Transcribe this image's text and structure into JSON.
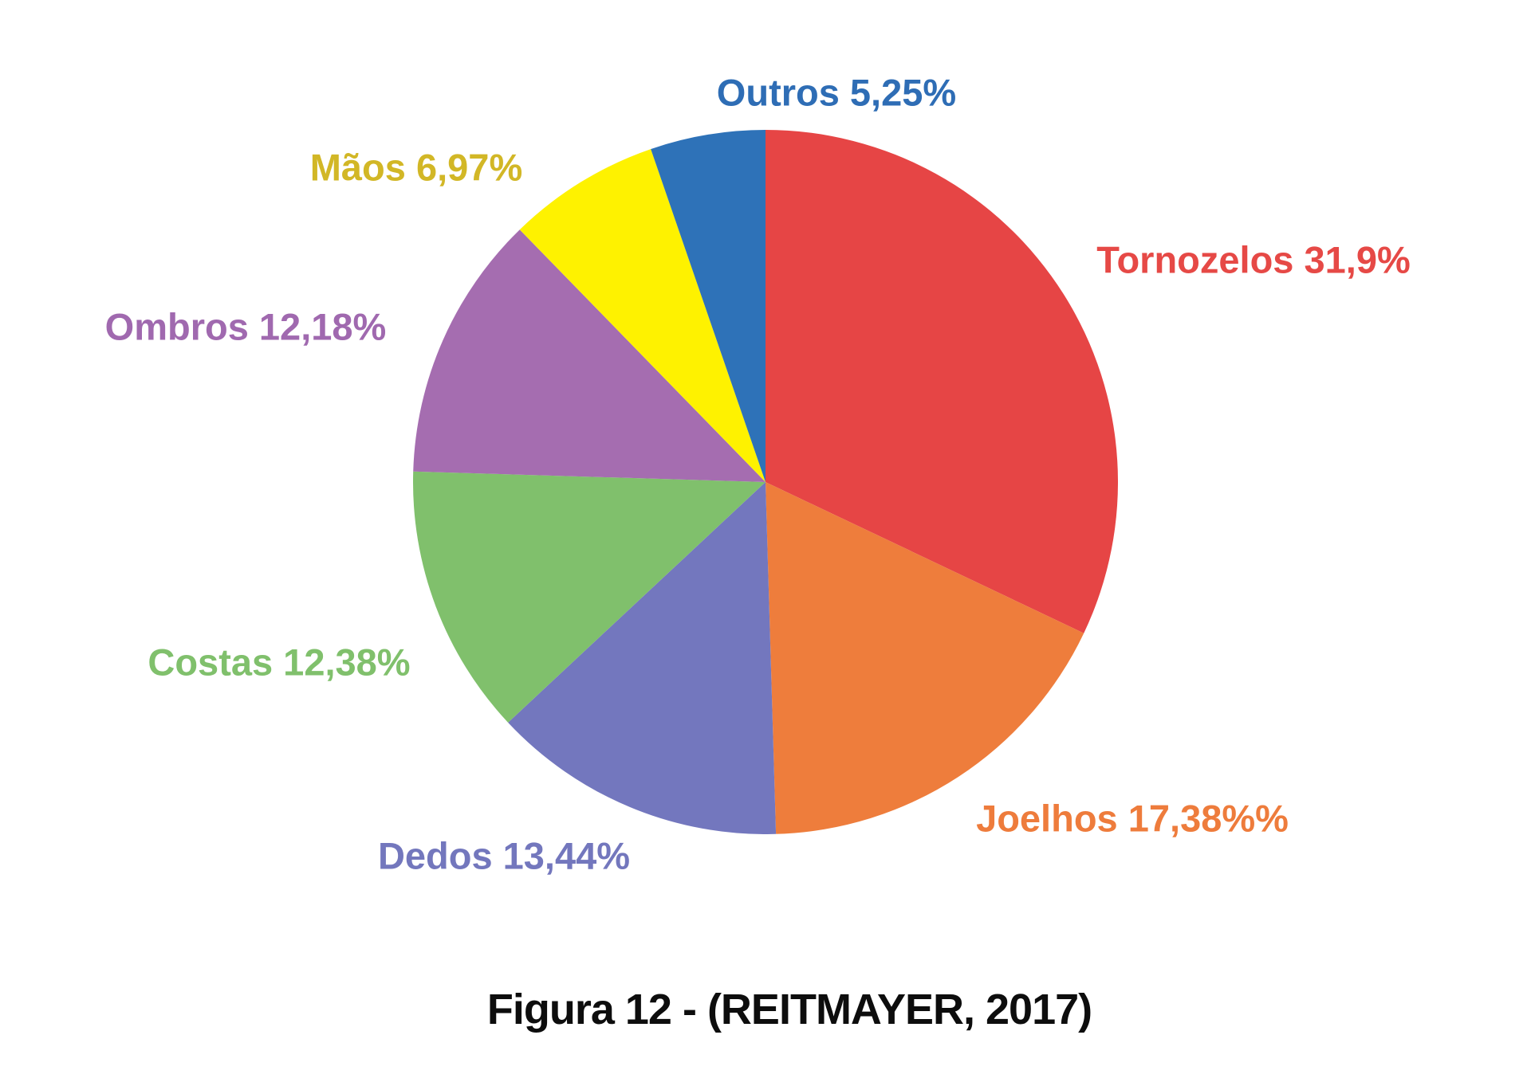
{
  "figure": {
    "background_color": "#ffffff",
    "caption": "Figura 12 - (REITMAYER, 2017)"
  },
  "chart_data": {
    "type": "pie",
    "title": "",
    "caption": "Figura 12 - (REITMAYER, 2017)",
    "start_angle_deg": 0,
    "direction": "clockwise",
    "legend": "none",
    "labels_position": "outside",
    "slices": [
      {
        "label": "Tornozelos",
        "value": 31.9,
        "display": "Tornozelos 31,9%",
        "color": "#E64545",
        "label_color": "#E64946"
      },
      {
        "label": "Joelhos",
        "value": 17.38,
        "display": "Joelhos 17,38%%",
        "color": "#EE7D3C",
        "label_color": "#EE7C3C"
      },
      {
        "label": "Dedos",
        "value": 13.44,
        "display": "Dedos 13,44%",
        "color": "#7377BE",
        "label_color": "#7377BD"
      },
      {
        "label": "Costas",
        "value": 12.38,
        "display": "Costas 12,38%",
        "color": "#80C06C",
        "label_color": "#80C06C"
      },
      {
        "label": "Ombros",
        "value": 12.18,
        "display": "Ombros 12,18%",
        "color": "#A56DB0",
        "label_color": "#A069AF"
      },
      {
        "label": "Maos",
        "value": 6.97,
        "display": "Mãos 6,97%",
        "color": "#FEF200",
        "label_color": "#D2B726"
      },
      {
        "label": "Outros",
        "value": 5.25,
        "display": "Outros 5,25%",
        "color": "#2E72B8",
        "label_color": "#2E6DB5"
      }
    ]
  }
}
